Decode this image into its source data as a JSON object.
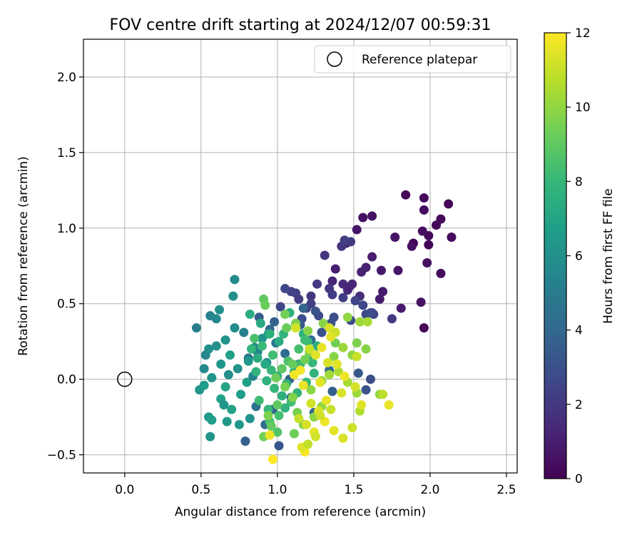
{
  "chart_data": {
    "type": "scatter",
    "title": "FOV centre drift starting at 2024/12/07 00:59:31",
    "xlabel": "Angular distance from reference (arcmin)",
    "ylabel": "Rotation from reference (arcmin)",
    "xlim": [
      -0.27,
      2.57
    ],
    "ylim": [
      -0.62,
      2.25
    ],
    "xticks": [
      0.0,
      0.5,
      1.0,
      1.5,
      2.0,
      2.5
    ],
    "xtick_labels": [
      "0.0",
      "0.5",
      "1.0",
      "1.5",
      "2.0",
      "2.5"
    ],
    "yticks": [
      -0.5,
      0.0,
      0.5,
      1.0,
      1.5,
      2.0
    ],
    "ytick_labels": [
      "−0.5",
      "0.0",
      "0.5",
      "1.0",
      "1.5",
      "2.0"
    ],
    "grid": true,
    "legend": {
      "position": "top-right",
      "entries": [
        "Reference platepar"
      ]
    },
    "reference_point": {
      "x": 0.0,
      "y": 0.0,
      "marker": "open-circle",
      "label": "Reference platepar"
    },
    "colorbar": {
      "label": "Hours from first FF file",
      "range": [
        0,
        12
      ],
      "ticks": [
        0,
        2,
        4,
        6,
        8,
        10,
        12
      ],
      "colormap": "viridis"
    },
    "colormap_stops": [
      "#440154",
      "#482878",
      "#3e4989",
      "#31688e",
      "#26828e",
      "#1f9e89",
      "#35b779",
      "#6ece58",
      "#b5de2b",
      "#fde725"
    ],
    "series": [
      {
        "x": [
          1.84,
          1.96,
          2.12,
          1.96,
          1.62,
          1.56,
          2.07,
          2.04,
          1.89,
          1.52,
          1.99,
          1.95,
          1.77,
          1.88,
          1.99,
          2.14,
          1.38,
          1.45,
          1.68,
          1.62,
          1.58,
          1.36,
          1.49,
          1.55,
          1.69,
          1.79,
          1.98,
          2.07,
          1.43,
          1.46,
          1.47,
          1.54,
          1.67,
          1.81,
          1.94,
          1.96
        ],
        "y": [
          1.22,
          1.2,
          1.16,
          1.12,
          1.08,
          1.07,
          1.06,
          1.02,
          0.9,
          0.99,
          0.95,
          0.98,
          0.94,
          0.88,
          0.89,
          0.94,
          0.73,
          0.9,
          0.72,
          0.81,
          0.74,
          0.65,
          0.63,
          0.71,
          0.58,
          0.72,
          0.77,
          0.7,
          0.63,
          0.59,
          0.61,
          0.55,
          0.53,
          0.47,
          0.51,
          0.34
        ],
        "hours": [
          0.2,
          0.3,
          0.2,
          0.4,
          0.6,
          0.5,
          0.3,
          0.2,
          0.1,
          0.7,
          0.2,
          0.4,
          0.6,
          0.5,
          0.1,
          0.3,
          1.0,
          1.2,
          0.8,
          1.0,
          1.1,
          1.2,
          1.3,
          1.1,
          0.9,
          0.7,
          0.5,
          0.3,
          1.4,
          1.5,
          1.2,
          1.6,
          1.0,
          0.9,
          0.6,
          0.2
        ]
      },
      {
        "x": [
          1.31,
          1.42,
          1.48,
          1.44,
          1.26,
          1.34,
          1.22,
          1.14,
          1.09,
          1.05,
          1.12,
          1.22,
          1.36,
          1.43,
          1.51,
          1.56,
          1.62,
          1.63,
          1.58,
          1.48,
          1.37,
          1.27,
          1.19,
          1.02,
          1.25,
          1.61,
          1.75,
          1.35,
          1.29,
          1.16
        ],
        "y": [
          0.82,
          0.88,
          0.91,
          0.92,
          0.63,
          0.6,
          0.55,
          0.53,
          0.58,
          0.6,
          0.57,
          0.5,
          0.56,
          0.54,
          0.52,
          0.49,
          0.44,
          0.43,
          0.43,
          0.39,
          0.41,
          0.42,
          0.47,
          0.48,
          0.45,
          0.44,
          0.4,
          0.37,
          0.31,
          0.4
        ],
        "hours": [
          1.8,
          1.9,
          2.1,
          2.3,
          2.0,
          1.9,
          1.9,
          2.2,
          2.4,
          2.6,
          2.4,
          2.3,
          2.2,
          2.3,
          2.5,
          2.6,
          2.6,
          2.4,
          2.7,
          2.8,
          2.9,
          2.7,
          2.4,
          2.6,
          3.0,
          2.8,
          2.0,
          3.1,
          3.0,
          2.9
        ]
      },
      {
        "x": [
          0.79,
          1.01,
          1.24,
          0.97,
          1.09,
          1.08,
          1.36,
          1.34,
          1.61,
          0.98,
          1.17,
          0.92,
          0.86,
          0.95,
          1.15,
          0.99,
          1.05,
          1.14,
          1.22,
          0.88,
          0.81,
          1.53,
          1.58
        ],
        "y": [
          -0.41,
          -0.44,
          -0.22,
          -0.2,
          -0.12,
          0.0,
          -0.08,
          0.06,
          0.0,
          0.38,
          0.47,
          -0.3,
          -0.18,
          0.33,
          0.36,
          0.24,
          0.17,
          0.1,
          0.26,
          0.41,
          0.14,
          0.04,
          -0.07
        ],
        "hours": [
          3.6,
          3.2,
          4.0,
          3.8,
          4.0,
          3.7,
          3.6,
          4.2,
          2.9,
          3.8,
          3.9,
          4.2,
          4.4,
          4.0,
          3.5,
          4.6,
          4.3,
          4.4,
          4.1,
          3.4,
          4.6,
          3.3,
          3.0
        ]
      },
      {
        "x": [
          0.47,
          0.56,
          0.6,
          0.62,
          0.72,
          0.78,
          0.66,
          0.6,
          0.53,
          0.52,
          0.57,
          0.55,
          0.63,
          0.68,
          0.74,
          0.81,
          0.85,
          0.9,
          0.94,
          0.72,
          0.71,
          0.56,
          0.55,
          0.57,
          0.49,
          0.52,
          0.63,
          0.65,
          0.67,
          0.7,
          0.76,
          0.8,
          0.87,
          0.93,
          0.75,
          0.82,
          0.69,
          0.66,
          0.84
        ],
        "y": [
          0.34,
          0.42,
          0.4,
          0.46,
          0.34,
          0.31,
          0.26,
          0.22,
          0.16,
          0.07,
          0.01,
          0.2,
          0.1,
          0.03,
          0.07,
          0.12,
          0.21,
          0.27,
          0.3,
          0.66,
          0.55,
          -0.38,
          -0.25,
          -0.27,
          -0.07,
          -0.04,
          -0.13,
          -0.17,
          -0.28,
          -0.2,
          -0.1,
          -0.02,
          0.18,
          0.11,
          -0.3,
          -0.26,
          0.16,
          -0.05,
          0.02
        ],
        "hours": [
          5.0,
          5.4,
          5.6,
          6.0,
          5.8,
          5.3,
          6.2,
          6.0,
          5.5,
          5.7,
          6.2,
          6.0,
          6.3,
          5.9,
          6.1,
          6.4,
          5.8,
          6.2,
          6.5,
          5.7,
          6.0,
          6.3,
          6.5,
          6.7,
          6.2,
          6.6,
          6.8,
          6.3,
          6.5,
          6.9,
          6.6,
          6.7,
          5.6,
          5.9,
          6.4,
          6.1,
          6.7,
          7.0,
          5.4
        ]
      },
      {
        "x": [
          0.82,
          0.89,
          0.95,
          1.01,
          1.04,
          1.08,
          1.12,
          1.17,
          1.2,
          1.26,
          0.83,
          0.87,
          0.92,
          0.96,
          1.0,
          1.06,
          1.11,
          1.15,
          1.21,
          0.93,
          0.98,
          1.03,
          1.09,
          1.13,
          1.19,
          1.24,
          0.88,
          0.94,
          1.01,
          1.05,
          0.85,
          0.9,
          0.97,
          1.07,
          1.14,
          1.18,
          1.23,
          0.86,
          0.95,
          1.0
        ],
        "y": [
          0.43,
          0.37,
          0.3,
          0.25,
          0.3,
          0.44,
          0.36,
          0.3,
          0.25,
          0.22,
          0.2,
          0.14,
          0.1,
          0.06,
          0.02,
          -0.03,
          0.05,
          0.1,
          0.16,
          -0.01,
          -0.06,
          -0.11,
          -0.15,
          -0.09,
          -0.02,
          0.04,
          -0.14,
          -0.2,
          -0.24,
          -0.19,
          0.27,
          0.22,
          0.16,
          0.12,
          0.2,
          0.26,
          0.11,
          0.05,
          -0.28,
          -0.35
        ],
        "hours": [
          7.4,
          7.2,
          7.6,
          7.3,
          7.8,
          7.5,
          7.1,
          7.7,
          7.9,
          7.6,
          7.9,
          7.4,
          7.2,
          8.0,
          7.5,
          7.8,
          7.3,
          8.2,
          7.9,
          7.7,
          8.0,
          7.6,
          8.3,
          7.9,
          8.1,
          7.8,
          8.2,
          8.0,
          8.4,
          7.7,
          8.5,
          8.1,
          8.3,
          8.6,
          8.4,
          8.2,
          8.0,
          7.8,
          8.5,
          8.7
        ]
      },
      {
        "x": [
          0.91,
          0.92,
          1.05,
          1.12,
          1.3,
          1.46,
          1.54,
          1.59,
          1.67,
          1.58,
          1.52,
          1.38,
          1.43,
          1.49,
          1.37,
          1.21,
          1.18,
          1.1,
          1.03,
          0.99,
          1.05,
          1.1,
          1.22,
          1.29,
          1.34,
          1.4,
          1.46,
          1.52,
          1.54,
          1.29,
          1.24,
          1.17,
          1.13,
          1.11,
          0.96,
          0.94,
          0.91,
          1.0,
          1.06,
          1.2
        ],
        "y": [
          0.53,
          0.49,
          0.43,
          0.37,
          0.37,
          0.41,
          0.38,
          0.38,
          -0.1,
          0.2,
          0.24,
          0.24,
          0.21,
          0.16,
          0.15,
          0.18,
          0.13,
          0.1,
          0.07,
          0.01,
          -0.05,
          -0.12,
          -0.07,
          -0.01,
          0.03,
          0.05,
          -0.02,
          -0.09,
          -0.21,
          -0.18,
          -0.25,
          -0.3,
          -0.22,
          -0.36,
          -0.31,
          -0.24,
          -0.38,
          -0.17,
          0.34,
          0.32
        ],
        "hours": [
          9.0,
          9.2,
          9.4,
          9.6,
          9.8,
          10.0,
          10.2,
          10.4,
          10.0,
          9.8,
          9.6,
          9.4,
          10.2,
          10.0,
          9.8,
          9.6,
          9.4,
          9.2,
          9.0,
          9.3,
          9.5,
          9.7,
          9.9,
          10.1,
          10.3,
          10.5,
          10.4,
          10.2,
          10.6,
          10.0,
          9.9,
          9.7,
          9.5,
          9.3,
          9.1,
          9.6,
          9.4,
          9.0,
          9.2,
          9.8
        ]
      },
      {
        "x": [
          1.34,
          1.38,
          1.35,
          1.12,
          1.21,
          1.25,
          1.29,
          1.33,
          1.39,
          1.44,
          1.51,
          1.52,
          1.55,
          1.73,
          1.69,
          1.49,
          1.43,
          1.37,
          1.31,
          1.27,
          1.22,
          1.17,
          1.11,
          1.14,
          1.19,
          1.24,
          1.28,
          1.18,
          1.16,
          1.2,
          1.25,
          1.32,
          1.35,
          1.42,
          0.97,
          0.95,
          1.15,
          1.28
        ],
        "y": [
          0.34,
          0.31,
          0.28,
          0.34,
          0.2,
          0.16,
          0.21,
          0.11,
          0.1,
          0.02,
          -0.05,
          0.15,
          -0.17,
          -0.17,
          -0.1,
          -0.32,
          -0.39,
          -0.34,
          -0.28,
          -0.21,
          -0.16,
          -0.04,
          0.03,
          -0.26,
          -0.3,
          -0.35,
          -0.24,
          -0.48,
          -0.45,
          -0.43,
          -0.38,
          -0.14,
          -0.2,
          -0.09,
          -0.53,
          -0.37,
          0.06,
          -0.02
        ],
        "hours": [
          11.3,
          11.1,
          11.5,
          11.2,
          11.0,
          11.4,
          11.6,
          11.3,
          11.5,
          11.7,
          11.2,
          11.0,
          11.4,
          11.6,
          10.8,
          11.1,
          11.3,
          11.5,
          11.7,
          11.4,
          11.2,
          11.6,
          11.8,
          11.0,
          11.3,
          11.5,
          11.1,
          11.9,
          11.4,
          10.9,
          11.2,
          11.6,
          11.0,
          11.3,
          12.0,
          11.7,
          11.8,
          11.5
        ]
      }
    ]
  }
}
